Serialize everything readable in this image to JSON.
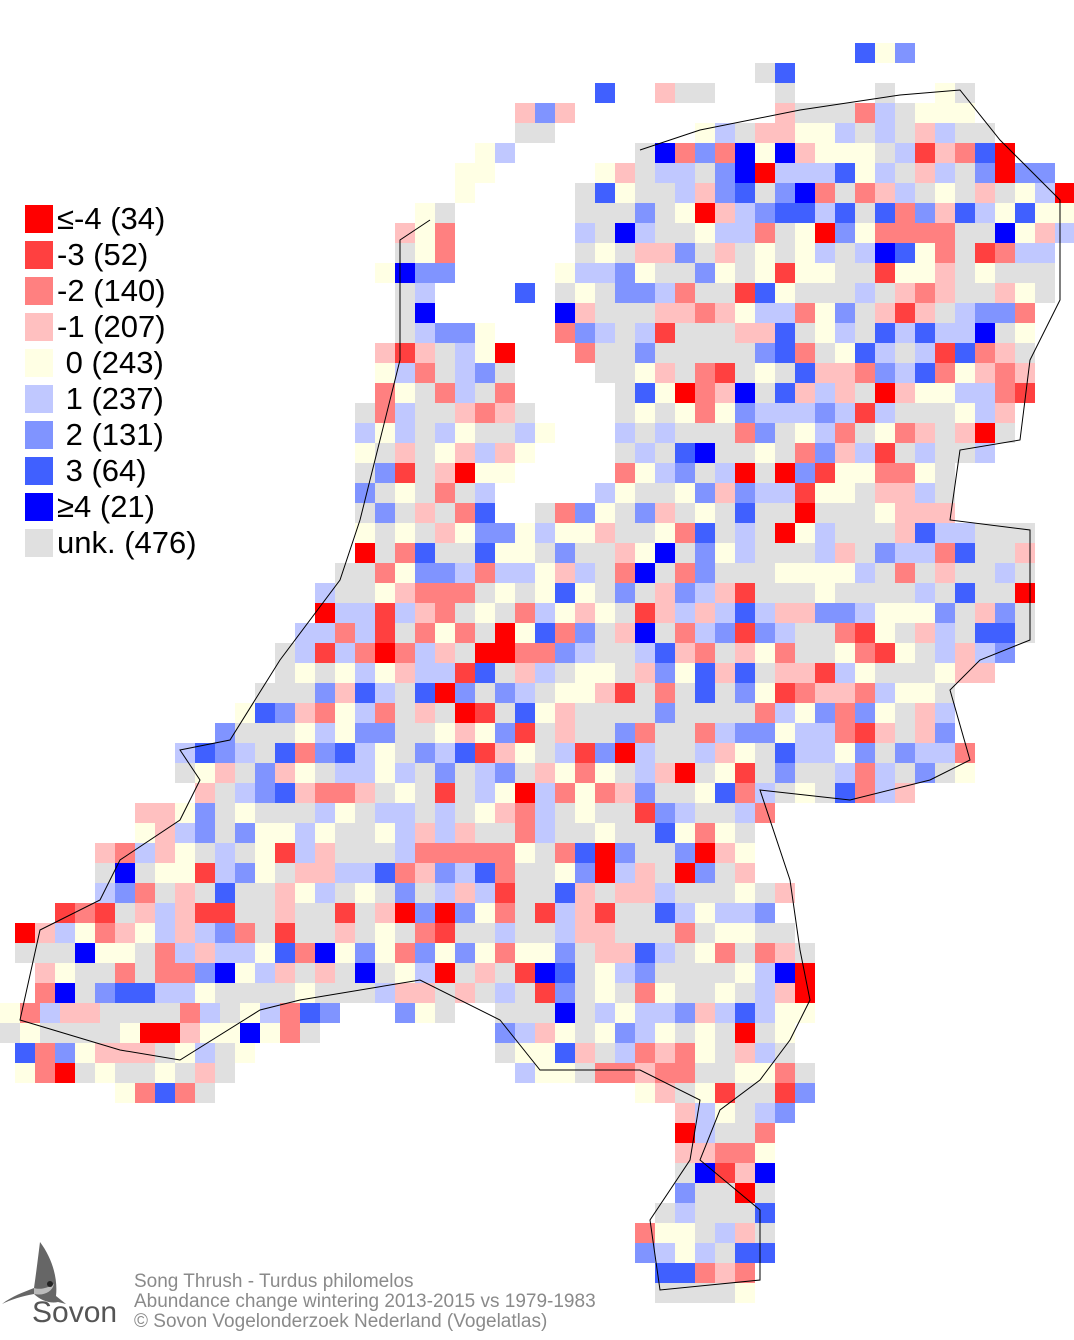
{
  "legend": {
    "items": [
      {
        "label": "≤-4 (34)",
        "class_value": "≤-4",
        "count": 34,
        "color": "#ff0000"
      },
      {
        "label": "-3 (52)",
        "class_value": "-3",
        "count": 52,
        "color": "#ff4040"
      },
      {
        "label": "-2 (140)",
        "class_value": "-2",
        "count": 140,
        "color": "#ff8080"
      },
      {
        "label": "-1 (207)",
        "class_value": "-1",
        "count": 207,
        "color": "#ffc0c0"
      },
      {
        "label": " 0 (243)",
        "class_value": "0",
        "count": 243,
        "color": "#ffffe4"
      },
      {
        "label": " 1 (237)",
        "class_value": "1",
        "count": 237,
        "color": "#c0c8ff"
      },
      {
        "label": " 2 (131)",
        "class_value": "2",
        "count": 131,
        "color": "#8094ff"
      },
      {
        "label": " 3 (64)",
        "class_value": "3",
        "count": 64,
        "color": "#4060ff"
      },
      {
        "label": "≥4 (21)",
        "class_value": "≥4",
        "count": 21,
        "color": "#0000ff"
      },
      {
        "label": "unk. (476)",
        "class_value": "unk.",
        "count": 476,
        "color": "#e0e0e0"
      }
    ]
  },
  "footer": {
    "species": "Song Thrush - Turdus philomelos",
    "description": "Abundance change wintering  2013-2015 vs 1979-1983",
    "copyright": "© Sovon Vogelonderzoek Nederland (Vogelatlas)"
  },
  "logo": {
    "text": "Sovon"
  }
}
